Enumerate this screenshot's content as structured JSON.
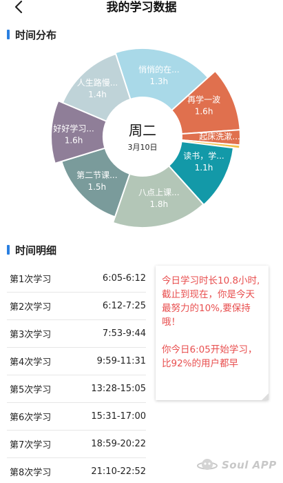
{
  "header": {
    "title": "我的学习数据"
  },
  "sections": {
    "distribution": "时间分布",
    "details": "时间明细"
  },
  "chart": {
    "center_day": "周二",
    "center_date": "3月10日",
    "slices": [
      {
        "name": "悄悄的在...",
        "value": "1.3h",
        "color": "#a9d9e8"
      },
      {
        "name": "再学一波",
        "value": "1.6h",
        "color": "#e0704e"
      },
      {
        "name": "起床洗漱...",
        "value": "",
        "color": "#e0704e"
      },
      {
        "name": "",
        "value": "",
        "color": "#f2c04a"
      },
      {
        "name": "读书，学...",
        "value": "1.1h",
        "color": "#1399a8"
      },
      {
        "name": "八点上课...",
        "value": "1.8h",
        "color": "#b3c6b7"
      },
      {
        "name": "第二节课...",
        "value": "1.5h",
        "color": "#7a9b9b"
      },
      {
        "name": "好好学习...",
        "value": "1.6h",
        "color": "#8f7e98"
      },
      {
        "name": "人生路慢...",
        "value": "1.4h",
        "color": "#bfd3d8"
      }
    ]
  },
  "sessions": [
    {
      "label": "第1次学习",
      "time": "6:05-6:12"
    },
    {
      "label": "第2次学习",
      "time": "6:12-7:25"
    },
    {
      "label": "第3次学习",
      "time": "7:53-9:44"
    },
    {
      "label": "第4次学习",
      "time": "9:59-11:31"
    },
    {
      "label": "第5次学习",
      "time": "13:28-15:05"
    },
    {
      "label": "第6次学习",
      "time": "15:31-17:00"
    },
    {
      "label": "第7次学习",
      "time": "18:59-20:22"
    },
    {
      "label": "第8次学习",
      "time": "21:10-22:52"
    }
  ],
  "note": {
    "para1": "今日学习时长10.8小时,截止到现在，你是今天最努力的10%,要保持哦！",
    "para2": "你今日6:05开始学习，比92%的用户都早"
  },
  "watermark": {
    "text": "Soul APP",
    "icon": "planet-logo-icon"
  }
}
